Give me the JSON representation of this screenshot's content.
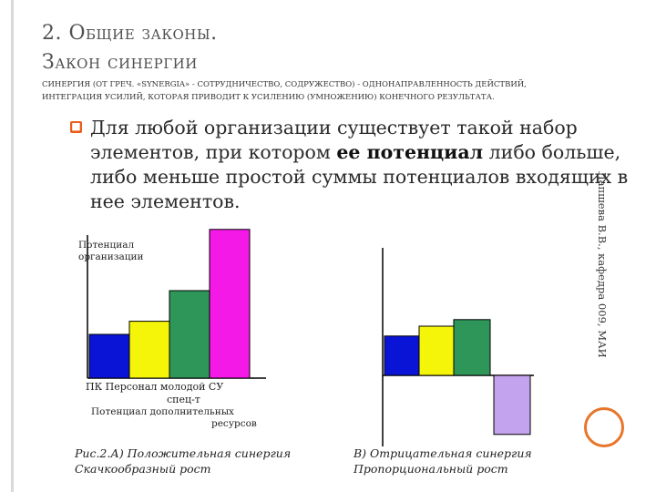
{
  "slide": {
    "title_line1": "2. Общие законы.",
    "title_line2": "Закон синергии",
    "definition": "Синергия (от греч. «synergia» - сотрудничество, содружество) - однонаправленность действий, интеграция усилий, которая приводит к усилению (умножению) конечного результата.",
    "bullet_before": "Для любой организации существует такой набор элементов, при котором ",
    "bullet_bold": "ее потенциал",
    "bullet_after": " либо больше, либо меньше простой суммы потенциалов входящих в нее элементов.",
    "side_text": "Лапшева В.В., кафедра 009, МАИ",
    "bullet_icon": "book-icon"
  },
  "chart_data": [
    {
      "type": "bar",
      "ylabel_line1": "Потенциал",
      "ylabel_line2": "организации",
      "categories": [
        "ПК",
        "Персонал",
        "молодой спец-т",
        "СУ"
      ],
      "category_line": "ПК Персонал молодой СУ",
      "category_sub": "спец-т",
      "extra_line1": "Потенциал дополнительных",
      "extra_line2": "ресурсов",
      "values": [
        1.0,
        1.3,
        2.0,
        3.4
      ],
      "colors": [
        "#0a14d6",
        "#f5f50a",
        "#2e9658",
        "#f519e8"
      ],
      "caption_line1": "Рис.2.А) Положительная синергия",
      "caption_line2": "Скачкообразный рост"
    },
    {
      "type": "bar",
      "values": [
        0.6,
        0.75,
        0.85,
        -0.9
      ],
      "colors": [
        "#0a14d6",
        "#f5f50a",
        "#2e9658",
        "#c4a3ee"
      ],
      "caption_line1": "В) Отрицательная синергия",
      "caption_line2": "Пропорциональный рост"
    }
  ]
}
